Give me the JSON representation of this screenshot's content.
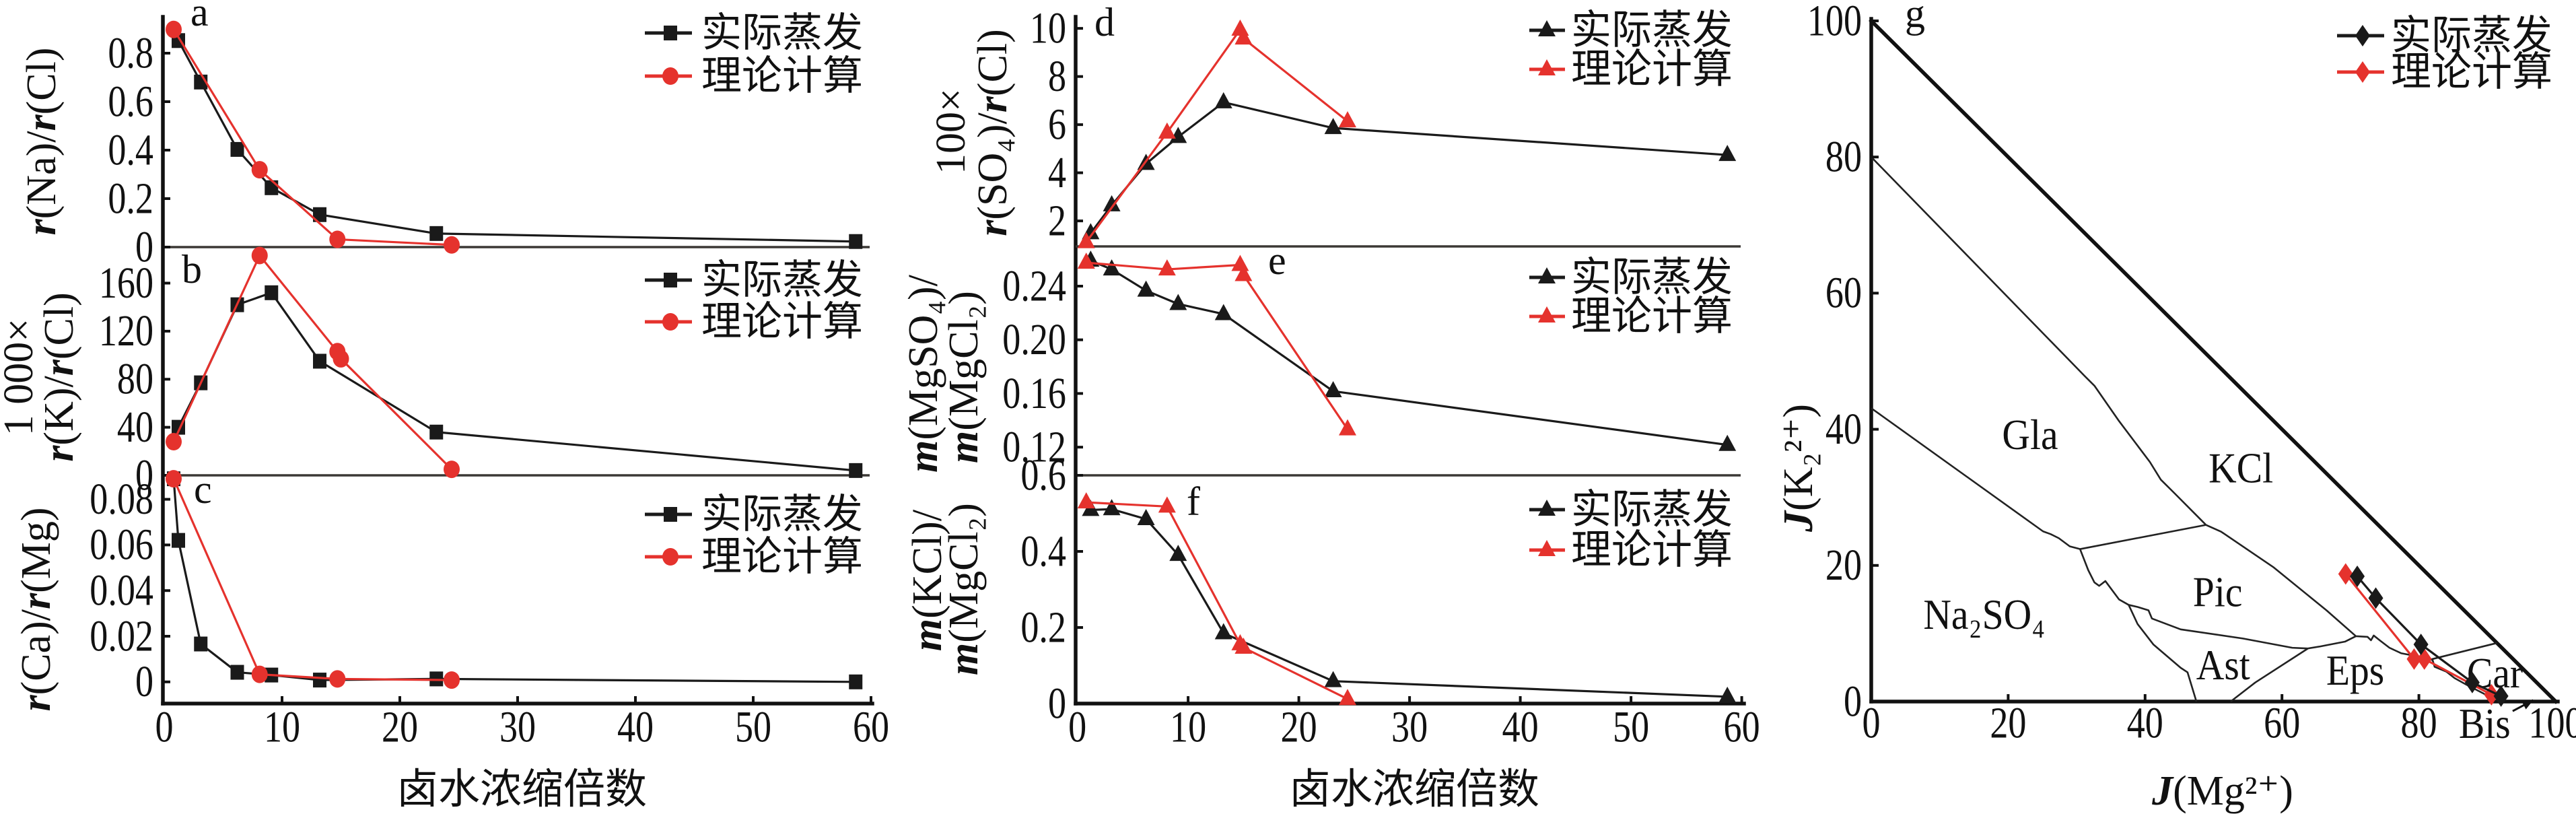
{
  "chart_data": [
    {
      "panel": "a",
      "type": "line",
      "title": "",
      "panel_label": "a",
      "xlabel": [],
      "ylabel": [
        [
          {
            "text": "r",
            "italic": true
          },
          {
            "text": "(Na)/"
          },
          {
            "text": "r",
            "italic": true
          },
          {
            "text": "(Cl)"
          }
        ]
      ],
      "xlim": [
        0,
        60
      ],
      "ylim": [
        0,
        0.95
      ],
      "xticks": [],
      "xtick_labels": [],
      "yticks": [
        0,
        0.2,
        0.4,
        0.6,
        0.8
      ],
      "ytick_labels": [
        "0",
        "0.2",
        "0.4",
        "0.6",
        "0.8"
      ],
      "grid": false,
      "sharex": "c",
      "legend": {
        "placement": "top-right",
        "entries": [
          "实际蒸发",
          "理论计算"
        ]
      },
      "series": [
        {
          "name": "实际蒸发",
          "color": "#1a1a1a",
          "marker": "square",
          "x": [
            1.2,
            3.1,
            6.2,
            9.1,
            13.2,
            23.1,
            58.7
          ],
          "y": [
            0.852,
            0.681,
            0.403,
            0.245,
            0.134,
            0.056,
            0.023
          ]
        },
        {
          "name": "理论计算",
          "color": "#e5322d",
          "marker": "circle",
          "x": [
            0.8,
            8.1,
            14.7,
            24.4
          ],
          "y": [
            0.898,
            0.319,
            0.032,
            0.009
          ]
        }
      ]
    },
    {
      "panel": "b",
      "type": "line",
      "title": "",
      "panel_label": "b",
      "xlabel": [],
      "ylabel": [
        [
          {
            "text": "1 000×"
          }
        ],
        [
          {
            "text": "r",
            "italic": true
          },
          {
            "text": "(K)/"
          },
          {
            "text": "r",
            "italic": true
          },
          {
            "text": "(Cl)"
          }
        ]
      ],
      "xlim": [
        0,
        60
      ],
      "ylim": [
        0,
        190
      ],
      "xticks": [],
      "xtick_labels": [],
      "yticks": [
        0,
        40,
        80,
        120,
        160
      ],
      "ytick_labels": [
        "0",
        "40",
        "80",
        "120",
        "160"
      ],
      "grid": false,
      "sharex": "c",
      "legend": {
        "placement": "top-right",
        "entries": [
          "实际蒸发",
          "理论计算"
        ]
      },
      "series": [
        {
          "name": "实际蒸发",
          "color": "#1a1a1a",
          "marker": "square",
          "x": [
            1.2,
            3.1,
            6.2,
            9.1,
            13.2,
            23.1,
            58.7
          ],
          "y": [
            40,
            77,
            142,
            152,
            95,
            36,
            4
          ]
        },
        {
          "name": "理论计算",
          "color": "#e5322d",
          "marker": "circle",
          "x": [
            0.8,
            8.1,
            14.7,
            15.0,
            24.4
          ],
          "y": [
            28,
            183,
            103,
            97,
            5
          ]
        }
      ]
    },
    {
      "panel": "c",
      "type": "line",
      "title": "",
      "panel_label": "c",
      "xlabel": [
        {
          "text": "卤水浓缩倍数"
        }
      ],
      "ylabel": [
        [
          {
            "text": "r",
            "italic": true
          },
          {
            "text": "(Ca)/"
          },
          {
            "text": "r",
            "italic": true
          },
          {
            "text": "(Mg)"
          }
        ]
      ],
      "xlim": [
        0,
        60
      ],
      "ylim": [
        -0.0095,
        0.0905
      ],
      "xticks": [
        0,
        10,
        20,
        30,
        40,
        50,
        60
      ],
      "xtick_labels": [
        "0",
        "10",
        "20",
        "30",
        "40",
        "50",
        "60"
      ],
      "yticks": [
        0,
        0.02,
        0.04,
        0.06,
        0.08
      ],
      "ytick_labels": [
        "0",
        "0.02",
        "0.04",
        "0.06",
        "0.08"
      ],
      "grid": false,
      "legend": {
        "placement": "top-right",
        "entries": [
          "实际蒸发",
          "理论计算"
        ]
      },
      "series": [
        {
          "name": "实际蒸发",
          "color": "#1a1a1a",
          "marker": "square",
          "x": [
            0.8,
            1.2,
            3.1,
            6.2,
            9.1,
            13.2,
            23.1,
            58.7
          ],
          "y": [
            0.089,
            0.062,
            0.0166,
            0.0042,
            0.003,
            0.0008,
            0.0013,
            0.0
          ]
        },
        {
          "name": "理论计算",
          "color": "#e5322d",
          "marker": "circle",
          "x": [
            0.8,
            8.1,
            14.7,
            24.4
          ],
          "y": [
            0.089,
            0.0033,
            0.0013,
            0.0008
          ]
        }
      ]
    },
    {
      "panel": "d",
      "type": "line",
      "title": "",
      "panel_label": "d",
      "xlabel": [],
      "ylabel": [
        [
          {
            "text": "100×"
          }
        ],
        [
          {
            "text": "r",
            "italic": true
          },
          {
            "text": "(SO₄)/"
          },
          {
            "text": "r",
            "italic": true
          },
          {
            "text": "(Cl)"
          }
        ]
      ],
      "xlim": [
        0,
        60
      ],
      "ylim": [
        0.94,
        10.48
      ],
      "xticks": [],
      "xtick_labels": [],
      "yticks": [
        2,
        4,
        6,
        8,
        10
      ],
      "ytick_labels": [
        "2",
        "4",
        "6",
        "8",
        "10"
      ],
      "grid": false,
      "sharex": "f",
      "legend": {
        "placement": "top-right",
        "entries": [
          "实际蒸发",
          "理论计算"
        ]
      },
      "series": [
        {
          "name": "实际蒸发",
          "color": "#1a1a1a",
          "marker": "triangle",
          "x": [
            1.2,
            3.1,
            6.2,
            9.1,
            13.2,
            23.1,
            58.7
          ],
          "y": [
            1.49,
            2.65,
            4.37,
            5.49,
            6.93,
            5.86,
            4.74
          ]
        },
        {
          "name": "理论计算",
          "color": "#e5322d",
          "marker": "triangle",
          "x": [
            0.8,
            8.1,
            14.7,
            15.0,
            24.4
          ],
          "y": [
            1.12,
            5.67,
            9.95,
            9.58,
            6.14
          ]
        }
      ]
    },
    {
      "panel": "e",
      "type": "line",
      "title": "",
      "panel_label": "e",
      "xlabel": [],
      "ylabel": [
        [
          {
            "text": "m",
            "italic": true
          },
          {
            "text": "(MgSO₄)/"
          }
        ],
        [
          {
            "text": "m",
            "italic": true
          },
          {
            "text": "(MgCl₂)"
          }
        ]
      ],
      "xlim": [
        0,
        60
      ],
      "ylim": [
        0.099,
        0.2696
      ],
      "xticks": [],
      "xtick_labels": [],
      "yticks": [
        0.12,
        0.16,
        0.2,
        0.24
      ],
      "ytick_labels": [
        "0.12",
        "0.16",
        "0.20",
        "0.24"
      ],
      "grid": false,
      "sharex": "f",
      "legend": {
        "placement": "top-right",
        "entries": [
          "实际蒸发",
          "理论计算"
        ]
      },
      "series": [
        {
          "name": "实际蒸发",
          "color": "#1a1a1a",
          "marker": "triangle",
          "x": [
            1.2,
            3.1,
            6.2,
            9.1,
            13.2,
            23.1,
            58.7
          ],
          "y": [
            0.259,
            0.2525,
            0.2367,
            0.2267,
            0.2192,
            0.1617,
            0.1217
          ]
        },
        {
          "name": "理论计算",
          "color": "#e5322d",
          "marker": "triangle",
          "x": [
            0.8,
            8.1,
            14.7,
            15.0,
            24.4
          ],
          "y": [
            0.2575,
            0.2525,
            0.2558,
            0.2483,
            0.1333
          ]
        }
      ]
    },
    {
      "panel": "f",
      "type": "line",
      "title": "",
      "panel_label": "f",
      "xlabel": [
        {
          "text": "卤水浓缩倍数"
        }
      ],
      "ylabel": [
        [
          {
            "text": "m",
            "italic": true
          },
          {
            "text": "(KCl)/"
          }
        ],
        [
          {
            "text": "m",
            "italic": true
          },
          {
            "text": "(MgCl₂)"
          }
        ]
      ],
      "xlim": [
        0,
        60
      ],
      "ylim": [
        0,
        0.6
      ],
      "xticks": [
        0,
        10,
        20,
        30,
        40,
        50,
        60
      ],
      "xtick_labels": [
        "0",
        "10",
        "20",
        "30",
        "40",
        "50",
        "60"
      ],
      "yticks": [
        0,
        0.2,
        0.4,
        0.6
      ],
      "ytick_labels": [
        "0",
        "0.2",
        "0.4",
        "0.6"
      ],
      "grid": false,
      "legend": {
        "placement": "top-right",
        "entries": [
          "实际蒸发",
          "理论计算"
        ]
      },
      "series": [
        {
          "name": "实际蒸发",
          "color": "#1a1a1a",
          "marker": "triangle",
          "x": [
            1.2,
            3.1,
            6.2,
            9.1,
            13.2,
            23.1,
            58.7
          ],
          "y": [
            0.509,
            0.511,
            0.485,
            0.391,
            0.185,
            0.059,
            0.018
          ]
        },
        {
          "name": "理论计算",
          "color": "#e5322d",
          "marker": "triangle",
          "x": [
            0.8,
            8.1,
            14.7,
            15.0,
            24.4
          ],
          "y": [
            0.529,
            0.518,
            0.156,
            0.147,
            0.012
          ]
        }
      ]
    },
    {
      "panel": "g",
      "type": "scatter",
      "title": "",
      "panel_label": "g",
      "xlabel": [
        {
          "text": "J",
          "italic": true
        },
        {
          "text": "(Mg²⁺)"
        }
      ],
      "ylabel": [
        [
          {
            "text": "J",
            "italic": true
          },
          {
            "text": "(K₂²⁺)"
          }
        ]
      ],
      "xlim": [
        0,
        100
      ],
      "ylim": [
        0,
        100
      ],
      "xticks": [
        0,
        20,
        40,
        60,
        80,
        100
      ],
      "xtick_labels": [
        "0",
        "20",
        "40",
        "60",
        "80",
        "100"
      ],
      "yticks": [
        0,
        20,
        40,
        60,
        80,
        100
      ],
      "ytick_labels": [
        "0",
        "20",
        "40",
        "60",
        "80",
        "100"
      ],
      "grid": false,
      "legend": {
        "placement": "top-right",
        "entries": [
          "实际蒸发",
          "理论计算"
        ]
      },
      "series": [
        {
          "name": "实际蒸发",
          "color": "#1a1a1a",
          "marker": "diamond",
          "x": [
            71.0,
            73.7,
            80.3,
            87.8,
            92.0
          ],
          "y": [
            18.4,
            15.2,
            8.4,
            2.8,
            0.8
          ]
        },
        {
          "name": "理论计算",
          "color": "#e5322d",
          "marker": "diamond",
          "x": [
            69.3,
            79.3,
            80.8,
            90.6
          ],
          "y": [
            18.75,
            6.25,
            6.25,
            1.0
          ]
        }
      ],
      "hypotenuse": [
        [
          0,
          100
        ],
        [
          100,
          0
        ]
      ],
      "boundaries": [
        {
          "name": "Na2SO4-Gla",
          "points": [
            [
              0,
              43.1
            ],
            [
              25.1,
              25.0
            ],
            [
              26.2,
              24.6
            ],
            [
              27.4,
              24.0
            ],
            [
              29.0,
              22.8
            ],
            [
              30.5,
              22.4
            ]
          ]
        },
        {
          "name": "Gla-KCl",
          "points": [
            [
              0,
              80
            ],
            [
              31.2,
              47.8
            ],
            [
              32.6,
              46.4
            ],
            [
              36.2,
              41.2
            ],
            [
              40.7,
              35.2
            ],
            [
              42.3,
              32.6
            ],
            [
              44.3,
              30.6
            ],
            [
              48.9,
              25.95
            ]
          ]
        },
        {
          "name": "Gla-Pic",
          "points": [
            [
              30.5,
              22.4
            ],
            [
              48.9,
              25.95
            ]
          ]
        },
        {
          "name": "KCl-Pic-Eps-Car",
          "points": [
            [
              48.9,
              25.95
            ],
            [
              51.1,
              24.96
            ],
            [
              58.8,
              19.7
            ],
            [
              66.5,
              13.4
            ],
            [
              70.8,
              9.6
            ],
            [
              72.5,
              9.5
            ],
            [
              73.0,
              9.0
            ],
            [
              73.4,
              9.7
            ],
            [
              74.4,
              8.9
            ],
            [
              75.7,
              7.9
            ],
            [
              77.4,
              7.1
            ],
            [
              80.0,
              6.6
            ],
            [
              82.0,
              6.1
            ],
            [
              82.3,
              5.1
            ],
            [
              84.0,
              4.4
            ],
            [
              85.2,
              3.45
            ],
            [
              86.9,
              2.5
            ],
            [
              89.5,
              1.15
            ],
            [
              91.0,
              0
            ]
          ]
        },
        {
          "name": "Na2SO4-Pic",
          "points": [
            [
              30.5,
              22.4
            ],
            [
              31.7,
              19.3
            ],
            [
              32.6,
              17.5
            ],
            [
              33.3,
              17.0
            ],
            [
              34.2,
              17.7
            ],
            [
              36.2,
              15.0
            ],
            [
              37.6,
              14.2
            ]
          ]
        },
        {
          "name": "Pic-Ast-Eps",
          "points": [
            [
              37.6,
              14.2
            ],
            [
              38.9,
              13.9
            ],
            [
              40.5,
              13.4
            ],
            [
              41.0,
              12.2
            ],
            [
              45.2,
              10.6
            ],
            [
              54.3,
              9.26
            ],
            [
              61.5,
              7.9
            ],
            [
              63.8,
              7.8
            ],
            [
              65.6,
              8.1
            ],
            [
              69.2,
              8.8
            ],
            [
              70.8,
              9.6
            ]
          ]
        },
        {
          "name": "Na2SO4-Ast",
          "points": [
            [
              37.6,
              14.2
            ],
            [
              38.9,
              11.4
            ],
            [
              41.2,
              8.4
            ],
            [
              45.2,
              4.96
            ],
            [
              46.2,
              4.3
            ],
            [
              47.5,
              0
            ]
          ]
        },
        {
          "name": "Ast-Eps",
          "points": [
            [
              63.8,
              7.8
            ],
            [
              56.1,
              2.8
            ],
            [
              52.5,
              0
            ]
          ]
        },
        {
          "name": "Eps-Car",
          "points": [
            [
              81.8,
              6.2
            ],
            [
              91.4,
              8.6
            ]
          ]
        }
      ],
      "regions": [
        {
          "text": "Gla",
          "x": 23.2,
          "y": 39.1
        },
        {
          "text": "KCl",
          "x": 54.0,
          "y": 34.2
        },
        {
          "text": "Pic",
          "x": 50.6,
          "y": 16.0
        },
        {
          "text": "Na₂SO₄",
          "x": 16.5,
          "y": 12.7
        },
        {
          "text": "Ast",
          "x": 51.4,
          "y": 5.3
        },
        {
          "text": "Eps",
          "x": 70.7,
          "y": 4.5
        },
        {
          "text": "Car",
          "x": 91.1,
          "y": 4.1
        },
        {
          "text": "Bis",
          "x": 89.6,
          "y": -3.3
        }
      ],
      "annotation_arrow": {
        "label": "Bis",
        "from": [
          93.7,
          -1.4
        ],
        "to": [
          96.7,
          0.2
        ]
      }
    }
  ]
}
